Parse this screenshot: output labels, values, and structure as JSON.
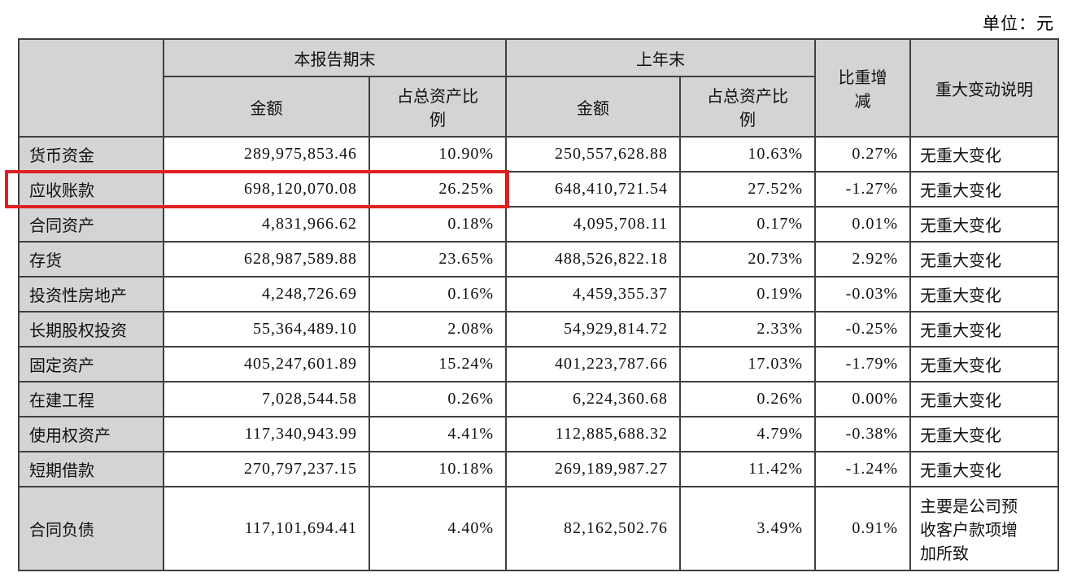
{
  "unit_label": "单位：元",
  "table": {
    "headers": {
      "current_period_group": "本报告期末",
      "prior_year_group": "上年末",
      "amount_current": "金额",
      "pct_current": "占总资产比\n例",
      "amount_prior": "金额",
      "pct_prior": "占总资产比\n例",
      "weight_change": "比重增\n减",
      "major_change_note": "重大变动说明"
    },
    "rows": [
      {
        "label": "货币资金",
        "cur_amount": "289,975,853.46",
        "cur_pct": "10.90%",
        "prev_amount": "250,557,628.88",
        "prev_pct": "10.63%",
        "change": "0.27%",
        "note": "无重大变化"
      },
      {
        "label": "应收账款",
        "cur_amount": "698,120,070.08",
        "cur_pct": "26.25%",
        "prev_amount": "648,410,721.54",
        "prev_pct": "27.52%",
        "change": "-1.27%",
        "note": "无重大变化",
        "highlighted": true
      },
      {
        "label": "合同资产",
        "cur_amount": "4,831,966.62",
        "cur_pct": "0.18%",
        "prev_amount": "4,095,708.11",
        "prev_pct": "0.17%",
        "change": "0.01%",
        "note": "无重大变化"
      },
      {
        "label": "存货",
        "cur_amount": "628,987,589.88",
        "cur_pct": "23.65%",
        "prev_amount": "488,526,822.18",
        "prev_pct": "20.73%",
        "change": "2.92%",
        "note": "无重大变化"
      },
      {
        "label": "投资性房地产",
        "cur_amount": "4,248,726.69",
        "cur_pct": "0.16%",
        "prev_amount": "4,459,355.37",
        "prev_pct": "0.19%",
        "change": "-0.03%",
        "note": "无重大变化"
      },
      {
        "label": "长期股权投资",
        "cur_amount": "55,364,489.10",
        "cur_pct": "2.08%",
        "prev_amount": "54,929,814.72",
        "prev_pct": "2.33%",
        "change": "-0.25%",
        "note": "无重大变化"
      },
      {
        "label": "固定资产",
        "cur_amount": "405,247,601.89",
        "cur_pct": "15.24%",
        "prev_amount": "401,223,787.66",
        "prev_pct": "17.03%",
        "change": "-1.79%",
        "note": "无重大变化"
      },
      {
        "label": "在建工程",
        "cur_amount": "7,028,544.58",
        "cur_pct": "0.26%",
        "prev_amount": "6,224,360.68",
        "prev_pct": "0.26%",
        "change": "0.00%",
        "note": "无重大变化"
      },
      {
        "label": "使用权资产",
        "cur_amount": "117,340,943.99",
        "cur_pct": "4.41%",
        "prev_amount": "112,885,688.32",
        "prev_pct": "4.79%",
        "change": "-0.38%",
        "note": "无重大变化"
      },
      {
        "label": "短期借款",
        "cur_amount": "270,797,237.15",
        "cur_pct": "10.18%",
        "prev_amount": "269,189,987.27",
        "prev_pct": "11.42%",
        "change": "-1.24%",
        "note": "无重大变化"
      },
      {
        "label": "合同负债",
        "cur_amount": "117,101,694.41",
        "cur_pct": "4.40%",
        "prev_amount": "82,162,502.76",
        "prev_pct": "3.49%",
        "change": "0.91%",
        "note": "主要是公司预\n收客户款项增\n加所致"
      }
    ]
  },
  "highlight": {
    "target_row": "应收账款",
    "color": "#e02020"
  },
  "colors": {
    "header_bg": "#d4d4d4",
    "border": "#404040",
    "text": "#111111",
    "page_bg": "#ffffff"
  }
}
